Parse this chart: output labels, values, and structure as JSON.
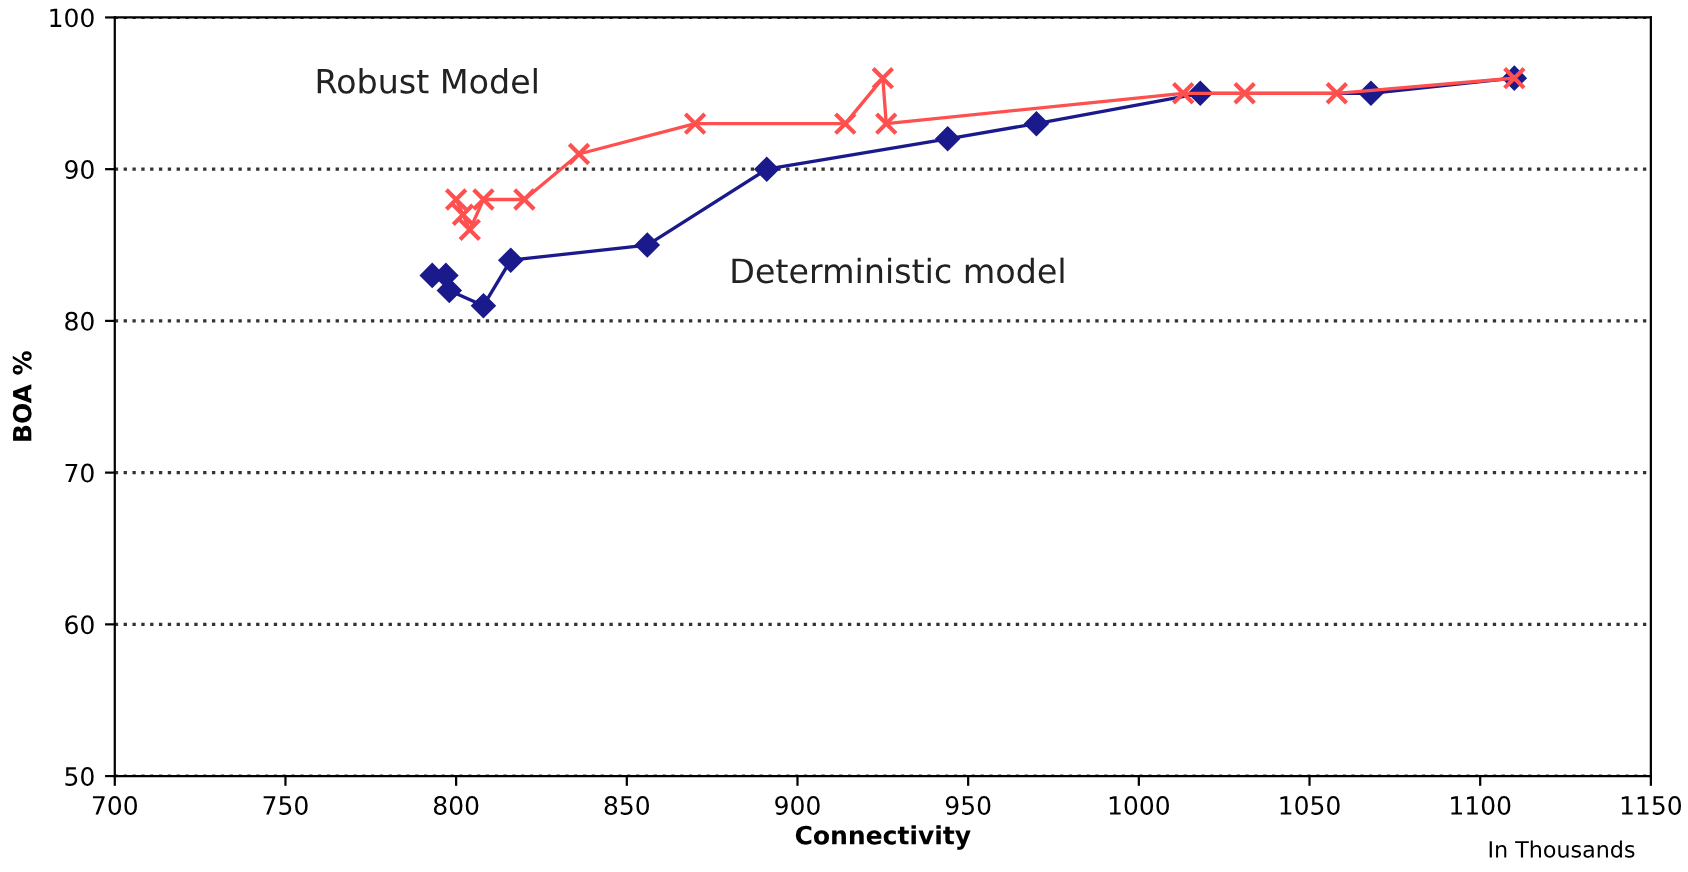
{
  "chart_data": {
    "type": "line",
    "xlabel": "Connectivity",
    "ylabel": "BOA %",
    "annotations": [
      "In Thousands"
    ],
    "xlim": [
      700,
      1150
    ],
    "xticks": [
      700,
      750,
      800,
      850,
      900,
      950,
      1000,
      1050,
      1100,
      1150
    ],
    "ylim": [
      50,
      100
    ],
    "yticks": [
      50,
      60,
      70,
      80,
      90,
      100
    ],
    "grid": "y",
    "legend": false,
    "series": [
      {
        "name": "Robust Model",
        "color": "#ff5050",
        "marker": "cross",
        "x": [
          800,
          802,
          804,
          808,
          820,
          836,
          870,
          914,
          925,
          926,
          1013,
          1031,
          1058,
          1110
        ],
        "values": [
          88,
          87,
          86,
          88,
          88,
          91,
          93,
          93,
          96,
          93,
          95,
          95,
          95,
          96
        ]
      },
      {
        "name": "Deterministic model",
        "color": "#1a1a8c",
        "marker": "diamond",
        "x": [
          793,
          797,
          798,
          808,
          816,
          856,
          891,
          944,
          970,
          1018,
          1068,
          1110
        ],
        "values": [
          83,
          83,
          82,
          81,
          84,
          85,
          90,
          92,
          93,
          95,
          95,
          96
        ]
      }
    ]
  }
}
